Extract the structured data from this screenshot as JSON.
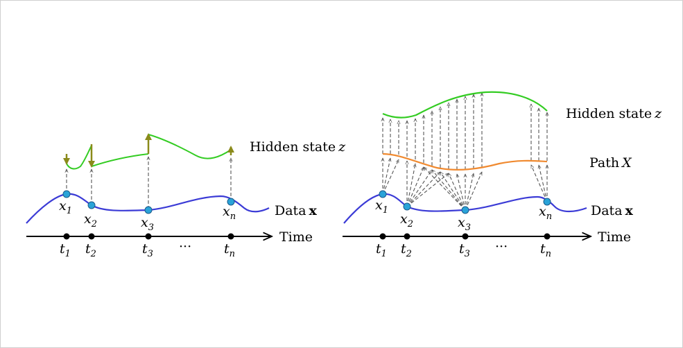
{
  "left_panel": {
    "labels": {
      "hidden_state": "Hidden state",
      "hidden_state_var": "z",
      "data": "Data",
      "data_var": "x",
      "time": "Time",
      "ellipsis": "···"
    },
    "points": [
      {
        "var": "x",
        "sub": "1",
        "tvar": "t",
        "tsub": "1"
      },
      {
        "var": "x",
        "sub": "2",
        "tvar": "t",
        "tsub": "2"
      },
      {
        "var": "x",
        "sub": "3",
        "tvar": "t",
        "tsub": "3"
      },
      {
        "var": "x",
        "sub": "n",
        "tvar": "t",
        "tsub": "n"
      }
    ]
  },
  "right_panel": {
    "labels": {
      "hidden_state": "Hidden state",
      "hidden_state_var": "z",
      "path": "Path",
      "path_var": "X",
      "data": "Data",
      "data_var": "x",
      "time": "Time",
      "ellipsis": "···"
    },
    "points": [
      {
        "var": "x",
        "sub": "1",
        "tvar": "t",
        "tsub": "1"
      },
      {
        "var": "x",
        "sub": "2",
        "tvar": "t",
        "tsub": "2"
      },
      {
        "var": "x",
        "sub": "3",
        "tvar": "t",
        "tsub": "3"
      },
      {
        "var": "x",
        "sub": "n",
        "tvar": "t",
        "tsub": "n"
      }
    ]
  },
  "colors": {
    "data_curve": "#3b3bd6",
    "hidden_curve": "#33cc22",
    "path_curve": "#f08a30",
    "jump_arrow": "#8a8a1a",
    "point_fill": "#2aa3d8",
    "axis": "#000000"
  }
}
